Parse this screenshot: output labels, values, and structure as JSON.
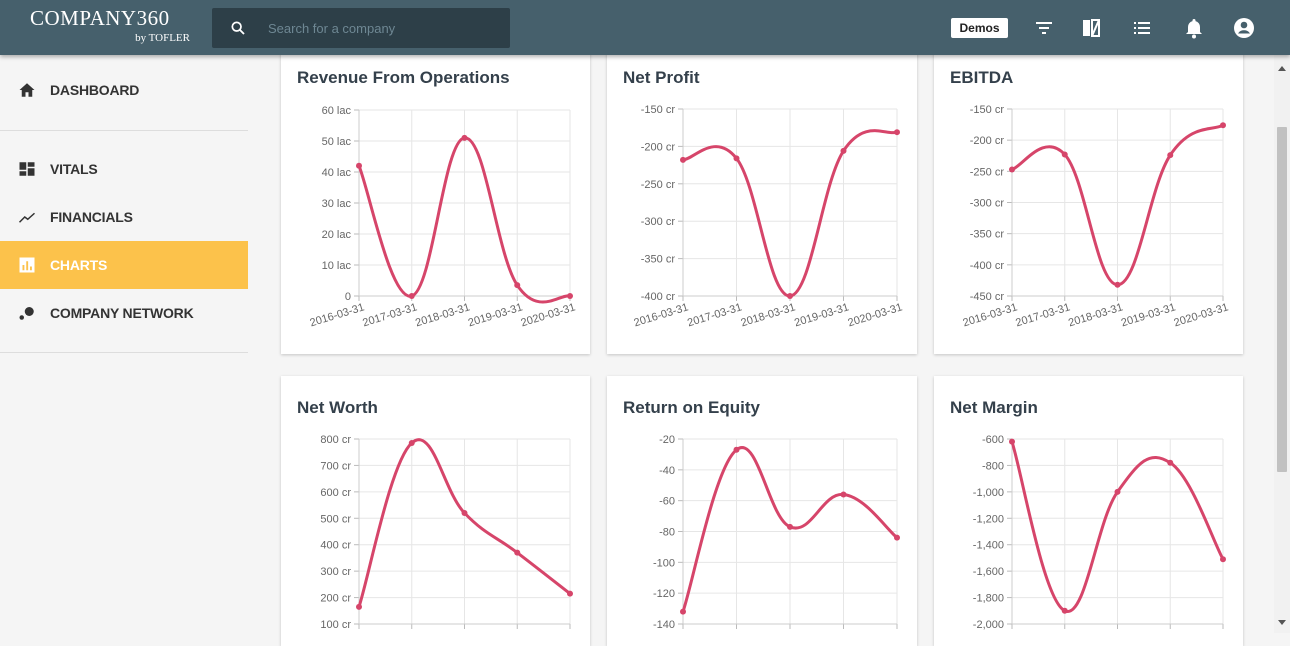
{
  "topbar": {
    "logo_main": "COMPANY360",
    "logo_sub": "by TOFLER",
    "search_placeholder": "Search for a company",
    "demos_label": "Demos",
    "icons": [
      "filter-icon",
      "compare-icon",
      "list-icon",
      "bell-icon",
      "account-icon"
    ]
  },
  "sidebar": {
    "items": [
      {
        "label": "DASHBOARD",
        "icon": "home-icon"
      },
      {
        "label": "VITALS",
        "icon": "dashboard-icon"
      },
      {
        "label": "FINANCIALS",
        "icon": "trending-icon"
      },
      {
        "label": "CHARTS",
        "icon": "bar-chart-icon",
        "active": true
      },
      {
        "label": "COMPANY NETWORK",
        "icon": "network-icon"
      }
    ]
  },
  "colors": {
    "topbar": "#46606c",
    "accent": "#fcc24b",
    "line": "#d6456a"
  },
  "chart_data": [
    {
      "type": "line",
      "title": "Revenue From Operations",
      "x": [
        "2016-03-31",
        "2017-03-31",
        "2018-03-31",
        "2019-03-31",
        "2020-03-31"
      ],
      "values": [
        42,
        0,
        51,
        3.5,
        0
      ],
      "ylim": [
        0,
        60
      ],
      "ticks": [
        0,
        10,
        20,
        30,
        40,
        50,
        60
      ],
      "tick_labels": [
        "0",
        "10 lac",
        "20 lac",
        "30 lac",
        "40 lac",
        "50 lac",
        "60 lac"
      ]
    },
    {
      "type": "line",
      "title": "Net Profit",
      "x": [
        "2016-03-31",
        "2017-03-31",
        "2018-03-31",
        "2019-03-31",
        "2020-03-31"
      ],
      "values": [
        -218,
        -216,
        -400,
        -206,
        -181
      ],
      "ylim": [
        -400,
        -150
      ],
      "ticks": [
        -400,
        -350,
        -300,
        -250,
        -200,
        -150
      ],
      "tick_labels": [
        "-400 cr",
        "-350 cr",
        "-300 cr",
        "-250 cr",
        "-200 cr",
        "-150 cr"
      ]
    },
    {
      "type": "line",
      "title": "EBITDA",
      "x": [
        "2016-03-31",
        "2017-03-31",
        "2018-03-31",
        "2019-03-31",
        "2020-03-31"
      ],
      "values": [
        -247,
        -223,
        -432,
        -224,
        -176
      ],
      "ylim": [
        -450,
        -150
      ],
      "ticks": [
        -450,
        -400,
        -350,
        -300,
        -250,
        -200,
        -150
      ],
      "tick_labels": [
        "-450 cr",
        "-400 cr",
        "-350 cr",
        "-300 cr",
        "-250 cr",
        "-200 cr",
        "-150 cr"
      ]
    },
    {
      "type": "line",
      "title": "Net Worth",
      "x": [
        "2016-03-31",
        "2017-03-31",
        "2018-03-31",
        "2019-03-31",
        "2020-03-31"
      ],
      "values": [
        165,
        785,
        520,
        370,
        215
      ],
      "ylim": [
        100,
        800
      ],
      "ticks": [
        100,
        200,
        300,
        400,
        500,
        600,
        700,
        800
      ],
      "tick_labels": [
        "100 cr",
        "200 cr",
        "300 cr",
        "400 cr",
        "500 cr",
        "600 cr",
        "700 cr",
        "800 cr"
      ]
    },
    {
      "type": "line",
      "title": "Return on Equity",
      "x": [
        "2016-03-31",
        "2017-03-31",
        "2018-03-31",
        "2019-03-31",
        "2020-03-31"
      ],
      "values": [
        -132,
        -27,
        -77,
        -56,
        -84
      ],
      "ylim": [
        -140,
        -20
      ],
      "ticks": [
        -140,
        -120,
        -100,
        -80,
        -60,
        -40,
        -20
      ],
      "tick_labels": [
        "-140",
        "-120",
        "-100",
        "-80",
        "-60",
        "-40",
        "-20"
      ]
    },
    {
      "type": "line",
      "title": "Net Margin",
      "x": [
        "2016-03-31",
        "2017-03-31",
        "2018-03-31",
        "2019-03-31",
        "2020-03-31"
      ],
      "values": [
        -620,
        -1900,
        -1000,
        -780,
        -1510
      ],
      "ylim": [
        -2000,
        -600
      ],
      "ticks": [
        -2000,
        -1800,
        -1600,
        -1400,
        -1200,
        -1000,
        -800,
        -600
      ],
      "tick_labels": [
        "-2,000",
        "-1,800",
        "-1,600",
        "-1,400",
        "-1,200",
        "-1,000",
        "-800",
        "-600"
      ]
    }
  ]
}
